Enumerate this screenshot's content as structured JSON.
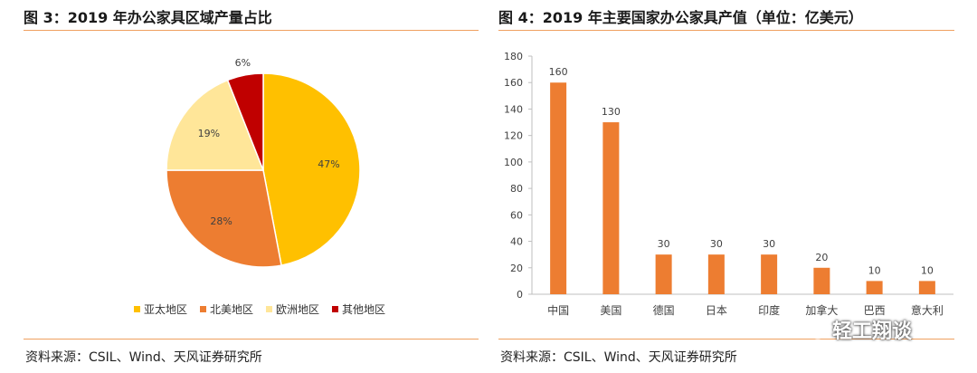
{
  "left_panel": {
    "title": "图 3：2019 年办公家具区域产量占比",
    "source": "资料来源：CSIL、Wind、天风证券研究所"
  },
  "right_panel": {
    "title": "图 4：2019 年主要国家办公家具产值（单位：亿美元）",
    "source": "资料来源：CSIL、Wind、天风证券研究所"
  },
  "watermark": {
    "text": "轻工翔谈",
    "icon": "wechat-icon"
  },
  "chart_data": [
    {
      "type": "pie",
      "title": "2019 年办公家具区域产量占比",
      "categories": [
        "亚太地区",
        "北美地区",
        "欧洲地区",
        "其他地区"
      ],
      "values": [
        47,
        28,
        19,
        6
      ],
      "labels": [
        "47%",
        "28%",
        "19%",
        "6%"
      ],
      "colors": [
        "#FFC000",
        "#ED7D31",
        "#FFE699",
        "#C00000"
      ],
      "legend": "bottom"
    },
    {
      "type": "bar",
      "title": "2019 年主要国家办公家具产值（单位：亿美元）",
      "categories": [
        "中国",
        "美国",
        "德国",
        "日本",
        "印度",
        "加拿大",
        "巴西",
        "意大利"
      ],
      "values": [
        160,
        130,
        30,
        30,
        30,
        20,
        10,
        10
      ],
      "ylim": [
        0,
        180
      ],
      "yticks": [
        0,
        20,
        40,
        60,
        80,
        100,
        120,
        140,
        160,
        180
      ],
      "color": "#ED7D31",
      "grid": false,
      "legend": "none"
    }
  ]
}
